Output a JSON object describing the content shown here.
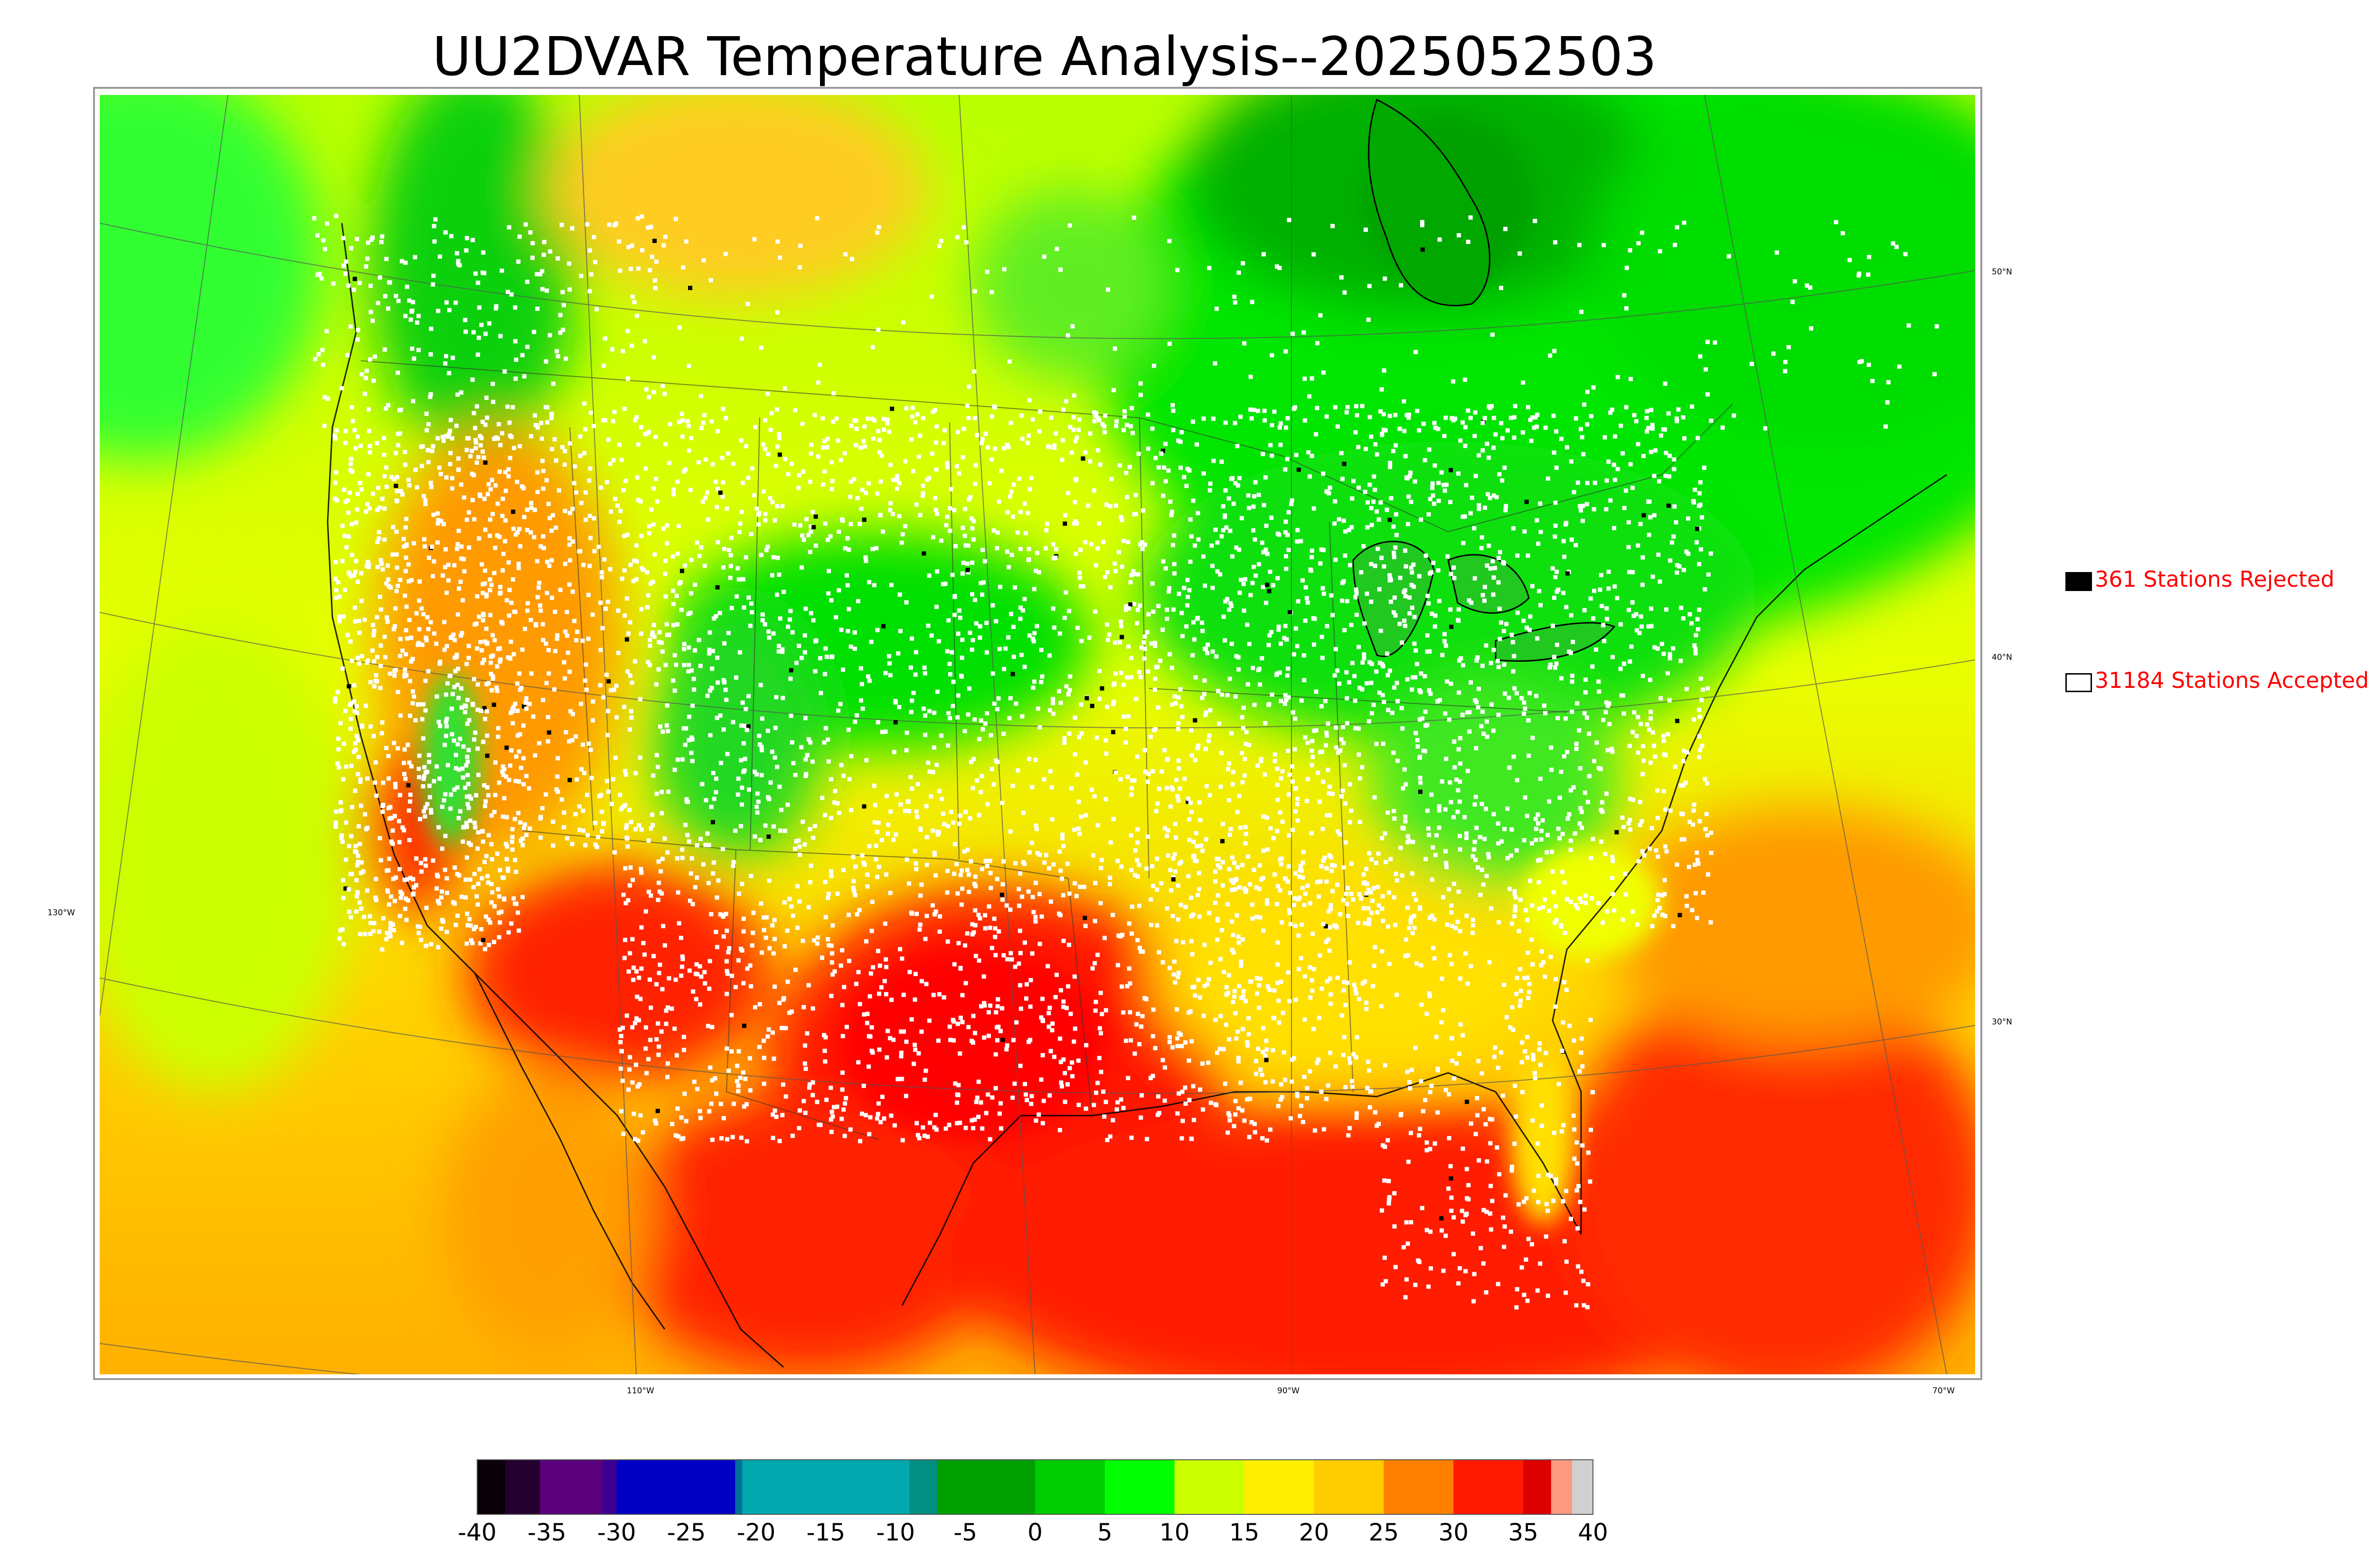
{
  "title": "UU2DVAR Temperature Analysis--2025052503",
  "legend": {
    "rejected": {
      "label": "361 Stations Rejected",
      "color": "#000000"
    },
    "accepted": {
      "label": "31184 Stations Accepted",
      "color": "#ffffff"
    }
  },
  "longitude_labels": [
    "130°W",
    "110°W",
    "90°W",
    "70°W"
  ],
  "latitude_labels": [
    "50°N",
    "40°N",
    "30°N"
  ],
  "colorbar": {
    "min": -40,
    "max": 40,
    "ticks": [
      "-40",
      "-35",
      "-30",
      "-25",
      "-20",
      "-15",
      "-10",
      "-5",
      "0",
      "5",
      "10",
      "15",
      "20",
      "25",
      "30",
      "35",
      "40"
    ],
    "colors": [
      {
        "from": -40,
        "to": -38,
        "color": "#0a0008"
      },
      {
        "from": -38,
        "to": -35.5,
        "color": "#240030"
      },
      {
        "from": -35.5,
        "to": -31,
        "color": "#5a007a"
      },
      {
        "from": -31,
        "to": -30,
        "color": "#3a0096"
      },
      {
        "from": -30,
        "to": -21.5,
        "color": "#0000c4"
      },
      {
        "from": -21.5,
        "to": -21,
        "color": "#006e9a"
      },
      {
        "from": -21,
        "to": -9,
        "color": "#00a8ae"
      },
      {
        "from": -9,
        "to": -7,
        "color": "#008f80"
      },
      {
        "from": -7,
        "to": 0,
        "color": "#00a000"
      },
      {
        "from": 0,
        "to": 5,
        "color": "#00cc00"
      },
      {
        "from": 5,
        "to": 10,
        "color": "#00ff00"
      },
      {
        "from": 10,
        "to": 15,
        "color": "#ccff00"
      },
      {
        "from": 15,
        "to": 20,
        "color": "#ffee00"
      },
      {
        "from": 20,
        "to": 25,
        "color": "#ffcc00"
      },
      {
        "from": 25,
        "to": 30,
        "color": "#ff8000"
      },
      {
        "from": 30,
        "to": 35,
        "color": "#ff1a00"
      },
      {
        "from": 35,
        "to": 37,
        "color": "#dd0000"
      },
      {
        "from": 37,
        "to": 38.5,
        "color": "#ff9980"
      },
      {
        "from": 38.5,
        "to": 40,
        "color": "#d0d0d0"
      }
    ]
  }
}
